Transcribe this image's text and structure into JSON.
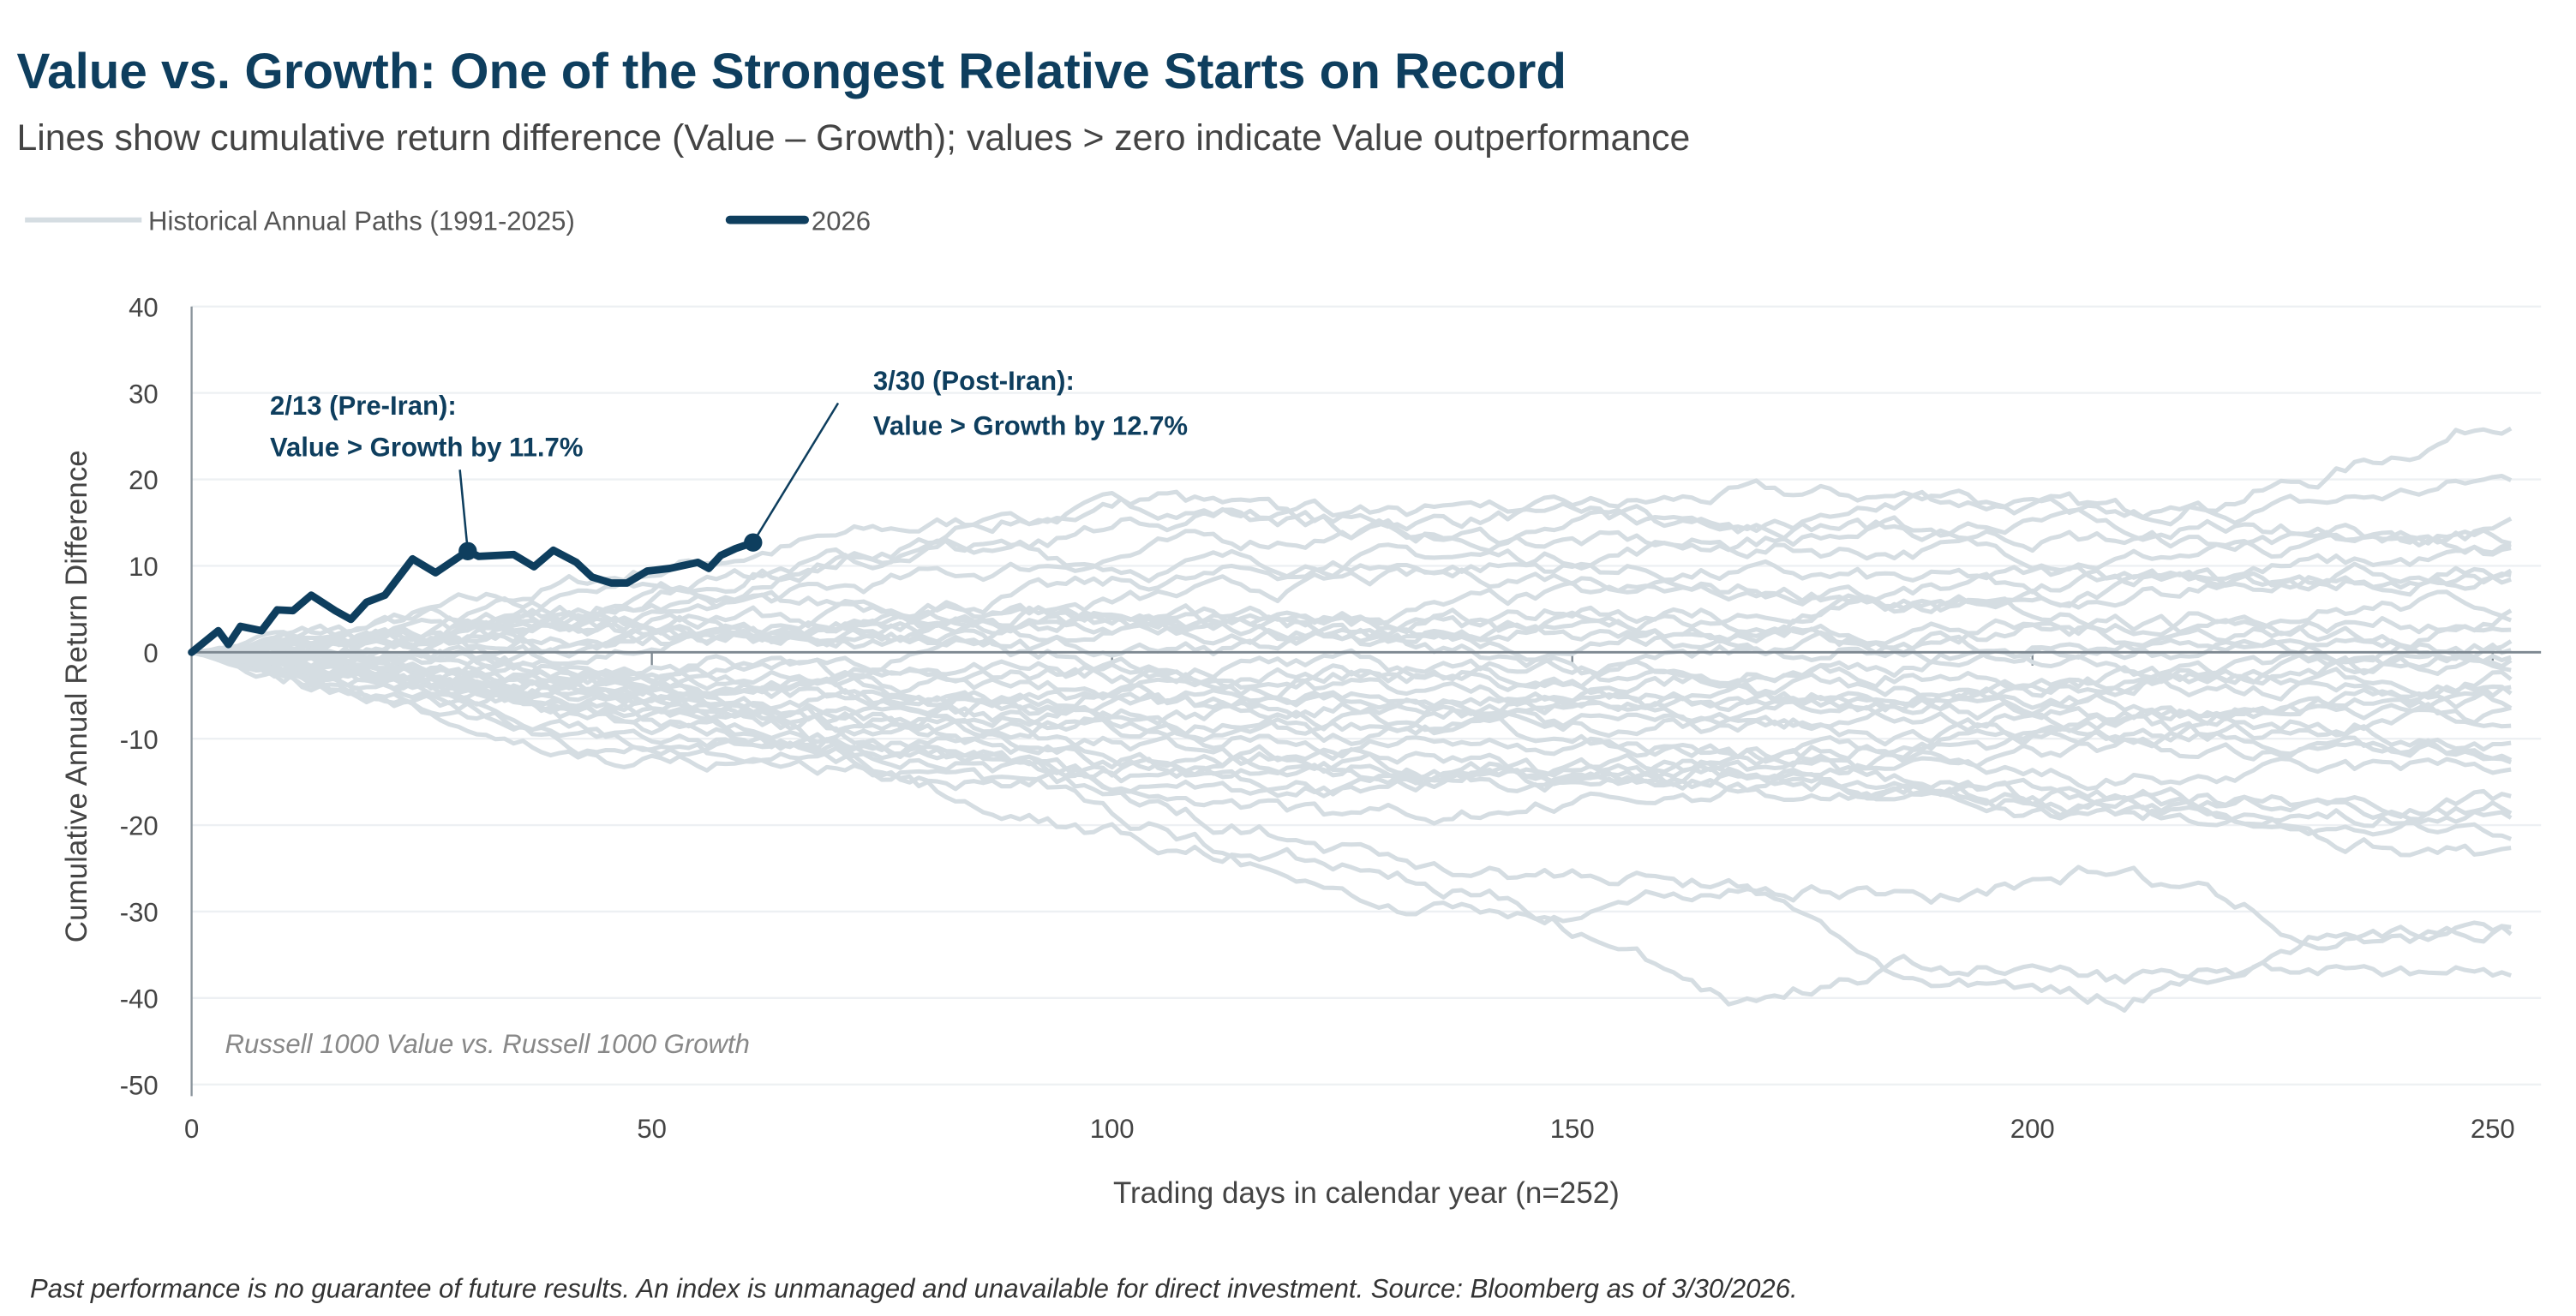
{
  "title": "Value vs. Growth: One of the Strongest Relative Starts on Record",
  "subtitle": "Lines show cumulative return difference (Value – Growth); values > zero indicate Value outperformance",
  "footer": "Past performance is no guarantee of future results. An index is unmanaged and unavailable for direct investment. Source: Bloomberg as of 3/30/2026.",
  "chart_data": {
    "type": "line",
    "xlabel": "Trading days in calendar year (n=252)",
    "ylabel": "Cumulative Annual Return Difference",
    "xlim": [
      0,
      255
    ],
    "ylim": [
      -50,
      40
    ],
    "xticks": [
      "0",
      "50",
      "100",
      "150",
      "200",
      "250"
    ],
    "yticks": [
      "40",
      "30",
      "20",
      "10",
      "0",
      "-10",
      "-20",
      "-30",
      "-40",
      "-50"
    ],
    "grid": "horizontal",
    "legend_placement": "top-left",
    "note": "Russell 1000 Value vs. Russell 1000 Growth",
    "colors": {
      "historical": "#d5dde2",
      "current": "#0e3e5e"
    },
    "legend": [
      "Historical Annual Paths (1991-2025)",
      "2026"
    ],
    "current_series": {
      "name": "2026",
      "x": [
        0,
        2.9,
        4,
        5.3,
        7.6,
        9.3,
        11,
        13,
        15.6,
        17.3,
        19,
        21,
        24,
        26.5,
        30,
        31.2,
        35,
        37.2,
        39.3,
        41.8,
        43.5,
        45.6,
        47.3,
        49.5,
        52,
        55,
        56.2,
        57.5,
        59.1,
        61
      ],
      "y": [
        0,
        2.5,
        0.9,
        3,
        2.5,
        4.9,
        4.8,
        6.6,
        4.8,
        3.8,
        5.8,
        6.6,
        10.8,
        9.2,
        11.7,
        11.1,
        11.3,
        9.9,
        11.8,
        10.4,
        8.7,
        8.0,
        8.0,
        9.4,
        9.7,
        10.4,
        9.7,
        11.2,
        12.0,
        12.7
      ]
    },
    "annotations": [
      {
        "line1": "2/13 (Pre-Iran):",
        "line2": "Value > Growth by 11.7%",
        "x": 30,
        "y": 11.7
      },
      {
        "line1": "3/30 (Post-Iran):",
        "line2": "Value > Growth by 12.7%",
        "x": 61,
        "y": 12.7
      }
    ],
    "historical_series": {
      "name": "Historical Annual Paths (1991-2025)",
      "x": [
        0,
        21,
        42,
        63,
        84,
        105,
        126,
        147,
        168,
        189,
        210,
        231,
        252
      ],
      "paths": [
        [
          0,
          3,
          8,
          12,
          15,
          17,
          15,
          16,
          18,
          18,
          16,
          20,
          27.5
        ],
        [
          0,
          2,
          6,
          9,
          14,
          18,
          14,
          14,
          16,
          14,
          15,
          17,
          20
        ],
        [
          0,
          1,
          4,
          6,
          9,
          12,
          14,
          13,
          12,
          12,
          11,
          12,
          14
        ],
        [
          0,
          2,
          5,
          10,
          12,
          10,
          11,
          11,
          13,
          14,
          13,
          12,
          12
        ],
        [
          0,
          1,
          3,
          5,
          6,
          8,
          10,
          10,
          9,
          8,
          9,
          10,
          11
        ],
        [
          0,
          2,
          3,
          2,
          4,
          6,
          8,
          9,
          8,
          6,
          7,
          9,
          9
        ],
        [
          0,
          1,
          2,
          3,
          2,
          3,
          4,
          6,
          7,
          7,
          8,
          8,
          8.5
        ],
        [
          0,
          1,
          0,
          2,
          3,
          3,
          2,
          3,
          4,
          5,
          4,
          5,
          6
        ],
        [
          0,
          0,
          1,
          1,
          2,
          3,
          2,
          1,
          2,
          3,
          2,
          3,
          4
        ],
        [
          0,
          1,
          2,
          1,
          2,
          2,
          3,
          2,
          1,
          0,
          1,
          0,
          1
        ],
        [
          0,
          -1,
          1,
          2,
          1,
          0,
          1,
          -1,
          0,
          1,
          0,
          1,
          0
        ],
        [
          0,
          -1,
          -2,
          -1,
          0,
          -1,
          -2,
          -3,
          -2,
          -1,
          -2,
          -1,
          -1
        ],
        [
          0,
          -2,
          -3,
          -4,
          -3,
          -2,
          -4,
          -5,
          -3,
          -2,
          -3,
          -2,
          -2
        ],
        [
          0,
          -1,
          -3,
          -2,
          -4,
          -5,
          -3,
          -2,
          -4,
          -5,
          -4,
          -3,
          -3
        ],
        [
          0,
          -3,
          -5,
          -6,
          -5,
          -7,
          -6,
          -5,
          -7,
          -6,
          -5,
          -4,
          -4
        ],
        [
          0,
          -2,
          -4,
          -5,
          -7,
          -6,
          -8,
          -7,
          -6,
          -8,
          -7,
          -6,
          -5
        ],
        [
          0,
          -4,
          -8,
          -10,
          -9,
          -7,
          -6,
          -8,
          -9,
          -7,
          -8,
          -6,
          -6
        ],
        [
          0,
          -2,
          -5,
          -4,
          -6,
          -8,
          -10,
          -9,
          -8,
          -10,
          -9,
          -8,
          -8
        ],
        [
          0,
          -3,
          -6,
          -8,
          -7,
          -9,
          -11,
          -10,
          -12,
          -11,
          -10,
          -9,
          -10
        ],
        [
          0,
          -5,
          -10,
          -12,
          -11,
          -13,
          -12,
          -14,
          -13,
          -12,
          -11,
          -12,
          -11
        ],
        [
          0,
          -6,
          -12,
          -13,
          -15,
          -14,
          -16,
          -15,
          -13,
          -14,
          -15,
          -14,
          -13
        ],
        [
          0,
          -3,
          -7,
          -9,
          -12,
          -15,
          -14,
          -13,
          -15,
          -16,
          -17,
          -17,
          -17
        ],
        [
          0,
          -2,
          -6,
          -8,
          -10,
          -12,
          -13,
          -14,
          -13,
          -15,
          -17,
          -18,
          -18
        ],
        [
          0,
          -4,
          -7,
          -10,
          -13,
          -16,
          -20,
          -18,
          -16,
          -17,
          -18,
          -19,
          -19
        ],
        [
          0,
          -3,
          -5,
          -7,
          -9,
          -11,
          -13,
          -15,
          -14,
          -16,
          -18,
          -20,
          -20
        ],
        [
          0,
          -5,
          -9,
          -11,
          -13,
          -15,
          -16,
          -15,
          -14,
          -17,
          -19,
          -21,
          -24
        ],
        [
          0,
          -2,
          -4,
          -8,
          -17,
          -22,
          -25,
          -30,
          -27,
          -28,
          -25,
          -33,
          -32.5
        ],
        [
          0,
          -3,
          -6,
          -10,
          -15,
          -20,
          -28,
          -31,
          -40,
          -36,
          -38,
          -36,
          -37
        ],
        [
          0,
          -2,
          -4,
          -7,
          -12,
          -18,
          -23,
          -26,
          -27,
          -39,
          -40,
          -33,
          -33
        ],
        [
          0,
          2,
          5,
          8,
          12,
          15,
          16,
          16,
          14,
          17,
          15,
          14,
          13
        ],
        [
          0,
          1,
          3,
          4,
          5,
          4,
          3,
          3,
          2,
          2,
          3,
          2,
          2
        ],
        [
          0,
          -1,
          -2,
          -3,
          -2,
          -3,
          -2,
          -4,
          -5,
          -4,
          -3,
          -2,
          -1
        ],
        [
          0,
          2,
          4,
          3,
          5,
          4,
          3,
          5,
          4,
          6,
          7,
          8,
          9
        ],
        [
          0,
          -2,
          -4,
          -5,
          -6,
          -4,
          -5,
          -6,
          -7,
          -5,
          -6,
          -7,
          -7
        ],
        [
          0,
          1,
          -2,
          -4,
          -6,
          -8,
          -9,
          -10,
          -12,
          -10,
          -9,
          -11,
          -12
        ]
      ]
    }
  }
}
